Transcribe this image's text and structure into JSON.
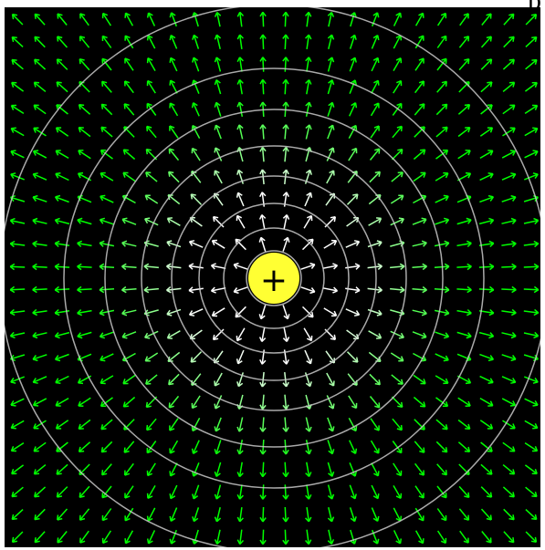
{
  "diagram": {
    "type": "electric-field-vector-plot",
    "charge_sign": "+",
    "corner_label": "p",
    "background_color": "#000000",
    "charge_color": "#ffff33",
    "near_arrow_color": "#ffffff",
    "far_arrow_color": "#00ff00",
    "equipotential_color": "#c8c8c8",
    "grid_columns": 24,
    "grid_rows": 24
  }
}
